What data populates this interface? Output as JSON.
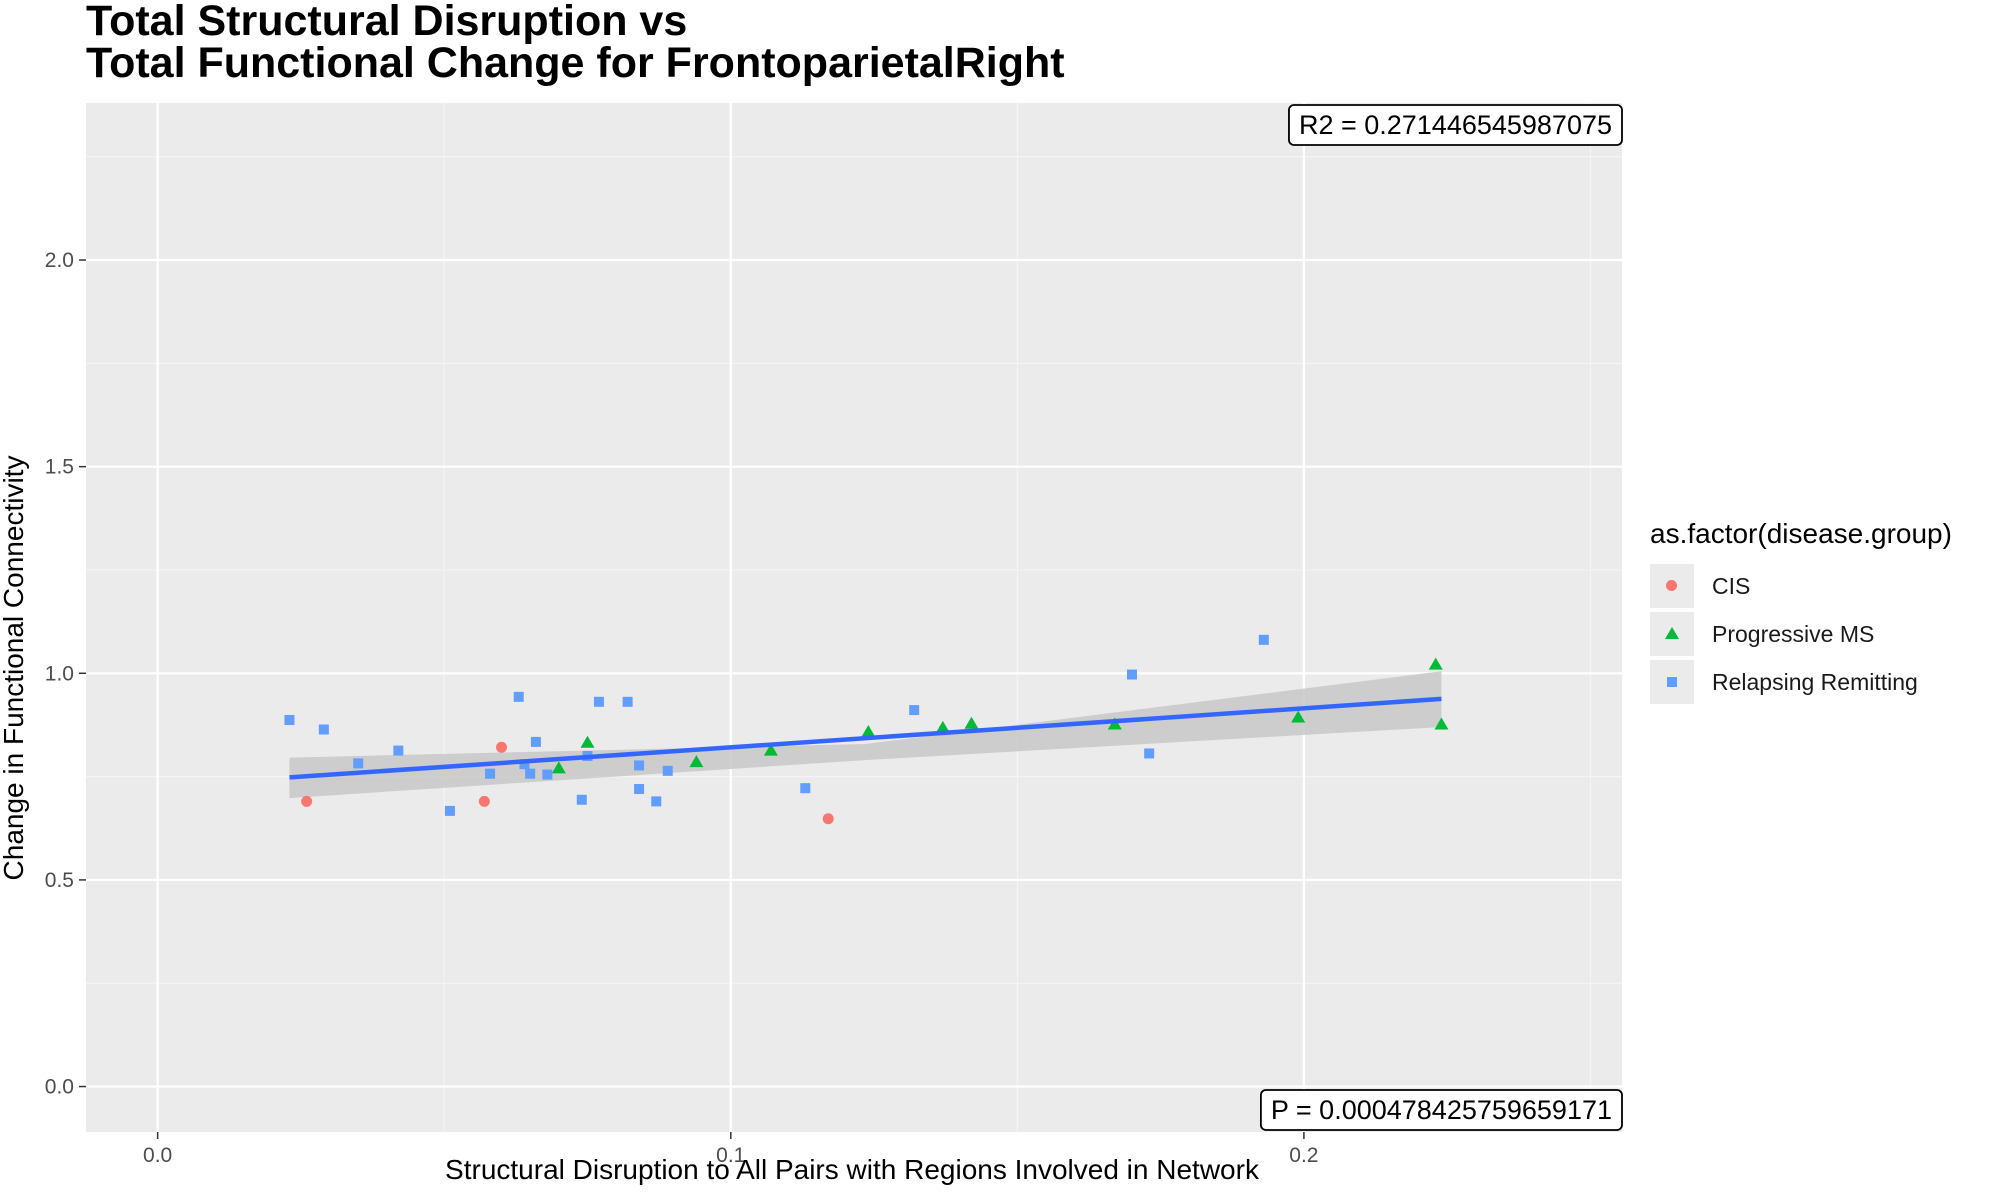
{
  "title_line1": "Total Structural Disruption vs",
  "title_line2": "Total Functional Change for FrontoparietalRight",
  "colors": {
    "panel": "#ebebeb",
    "grid_major": "#ffffff",
    "grid_minor": "#f4f4f4",
    "fit_line": "#3366ff",
    "ribbon": "#c8c8c8",
    "CIS": "#f8766d",
    "Progressive MS": "#00ba38",
    "Relapsing Remitting": "#619cff"
  },
  "legend": {
    "title": "as.factor(disease.group)",
    "items": [
      {
        "label": "CIS",
        "shape": "circle",
        "color": "#f8766d"
      },
      {
        "label": "Progressive MS",
        "shape": "triangle",
        "color": "#00ba38"
      },
      {
        "label": "Relapsing Remitting",
        "shape": "square",
        "color": "#619cff"
      }
    ]
  },
  "chart_data": {
    "type": "scatter",
    "title": "Total Structural Disruption vs\nTotal Functional Change for FrontoparietalRight",
    "xlabel": "Structural Disruption to All Pairs with Regions Involved in Network",
    "ylabel": "Change in Functional Connectivity",
    "xlim": [
      -0.0125,
      0.2555
    ],
    "ylim": [
      -0.11,
      2.38
    ],
    "x_ticks": [
      0.0,
      0.1,
      0.2
    ],
    "x_tick_labels": [
      "0.0",
      "0.1",
      "0.2"
    ],
    "y_ticks": [
      0.0,
      0.5,
      1.0,
      1.5,
      2.0
    ],
    "y_tick_labels": [
      "0.0",
      "0.5",
      "1.0",
      "1.5",
      "2.0"
    ],
    "grid": true,
    "legend_position": "right",
    "annotations": [
      {
        "text": "R2 =  0.271446545987075",
        "position": "top-right"
      },
      {
        "text": "P =  0.000478425759659171",
        "position": "bottom-right"
      }
    ],
    "fit": {
      "method": "linear",
      "x_range": [
        0.023,
        0.224
      ],
      "y_start": 0.748,
      "y_end": 0.938,
      "ribbon_lower_start": 0.698,
      "ribbon_upper_start": 0.796,
      "ribbon_lower_mid": 0.79,
      "ribbon_upper_mid": 0.829,
      "ribbon_lower_end": 0.87,
      "ribbon_upper_end": 1.005
    },
    "series": [
      {
        "name": "CIS",
        "shape": "circle",
        "points": [
          [
            0.026,
            0.69
          ],
          [
            0.057,
            0.69
          ],
          [
            0.06,
            0.821
          ],
          [
            0.117,
            0.648
          ]
        ]
      },
      {
        "name": "Progressive MS",
        "shape": "triangle",
        "points": [
          [
            0.07,
            0.77
          ],
          [
            0.075,
            0.832
          ],
          [
            0.094,
            0.785
          ],
          [
            0.107,
            0.813
          ],
          [
            0.124,
            0.858
          ],
          [
            0.137,
            0.868
          ],
          [
            0.142,
            0.878
          ],
          [
            0.167,
            0.876
          ],
          [
            0.199,
            0.893
          ],
          [
            0.223,
            1.021
          ],
          [
            0.224,
            0.876
          ]
        ]
      },
      {
        "name": "Relapsing Remitting",
        "shape": "square",
        "points": [
          [
            0.023,
            0.887
          ],
          [
            0.029,
            0.864
          ],
          [
            0.035,
            0.782
          ],
          [
            0.042,
            0.813
          ],
          [
            0.051,
            0.667
          ],
          [
            0.058,
            0.757
          ],
          [
            0.063,
            0.943
          ],
          [
            0.064,
            0.78
          ],
          [
            0.065,
            0.757
          ],
          [
            0.066,
            0.834
          ],
          [
            0.068,
            0.755
          ],
          [
            0.074,
            0.694
          ],
          [
            0.075,
            0.8
          ],
          [
            0.077,
            0.931
          ],
          [
            0.082,
            0.931
          ],
          [
            0.084,
            0.72
          ],
          [
            0.084,
            0.777
          ],
          [
            0.087,
            0.69
          ],
          [
            0.089,
            0.764
          ],
          [
            0.113,
            0.722
          ],
          [
            0.132,
            0.911
          ],
          [
            0.17,
            0.997
          ],
          [
            0.173,
            0.806
          ],
          [
            0.193,
            1.081
          ]
        ]
      }
    ]
  }
}
